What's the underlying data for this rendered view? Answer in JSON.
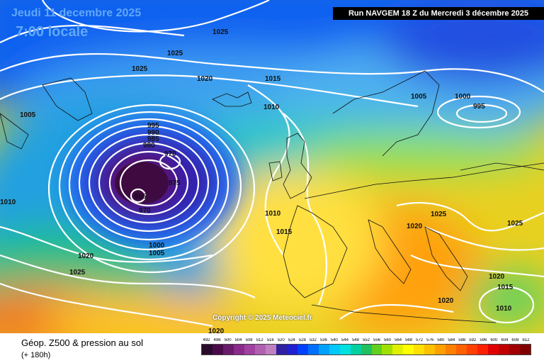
{
  "header": {
    "date": "Jeudi 11 decembre 2025",
    "time": "7:00 locale",
    "run": "Run NAVGEM 18 Z du Mercredi 3 décembre 2025"
  },
  "map": {
    "copyright": "Copyright © 2025 Meteociel.fr",
    "isobar_labels": [
      "1025",
      "1025",
      "1025",
      "1020",
      "1015",
      "1010",
      "1005",
      "1000",
      "995",
      "1005",
      "995",
      "990",
      "985",
      "980",
      "970",
      "975",
      "965",
      "970",
      "1010",
      "1010",
      "1015",
      "1000",
      "1005",
      "1020",
      "1025",
      "1025",
      "1020",
      "1025",
      "1020",
      "1015",
      "1010",
      "1020",
      "1020"
    ]
  },
  "footer": {
    "title": "Géop. Z500 & pression au sol",
    "subtitle": "(+ 180h)"
  },
  "legend": {
    "labels": [
      "492",
      "496",
      "500",
      "504",
      "508",
      "512",
      "516",
      "520",
      "524",
      "528",
      "532",
      "536",
      "540",
      "544",
      "548",
      "552",
      "556",
      "560",
      "564",
      "568",
      "572",
      "576",
      "580",
      "584",
      "588",
      "592",
      "596",
      "600",
      "604",
      "608",
      "612"
    ],
    "colors": [
      "#2a0a2a",
      "#4a0a4a",
      "#6a1a6a",
      "#8a2a8a",
      "#a040a0",
      "#b060b0",
      "#c080c0",
      "#3020a0",
      "#2020d0",
      "#0040ff",
      "#0070ff",
      "#00a0ff",
      "#00c8ff",
      "#00e0e0",
      "#00d0a0",
      "#20c060",
      "#60d020",
      "#a0e000",
      "#e0f000",
      "#ffff00",
      "#ffe000",
      "#ffc000",
      "#ffa000",
      "#ff8000",
      "#ff6000",
      "#ff4000",
      "#ff2000",
      "#e00000",
      "#c00000",
      "#a00000",
      "#800000"
    ]
  }
}
